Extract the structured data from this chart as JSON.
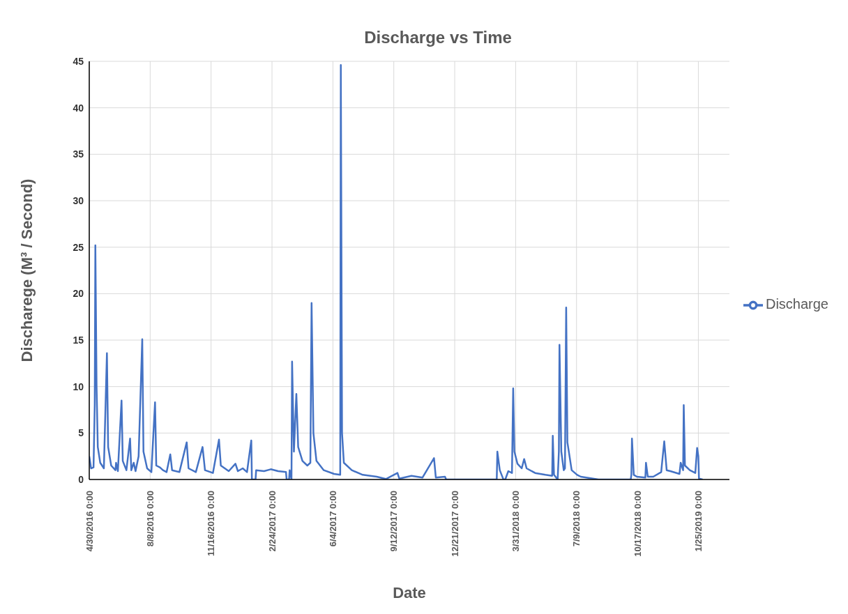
{
  "chart_data": {
    "type": "line",
    "title": "Discharge vs Time",
    "xlabel": "Date",
    "ylabel": "Discharege (M³ / Second)",
    "xlim": [
      "2016-04-30",
      "2019-03-17"
    ],
    "xticks": [
      {
        "value": "2016-04-30",
        "label": "4/30/2016 0:00"
      },
      {
        "value": "2016-08-08",
        "label": "8/8/2016 0:00"
      },
      {
        "value": "2016-11-16",
        "label": "11/16/2016 0:00"
      },
      {
        "value": "2017-02-24",
        "label": "2/24/2017 0:00"
      },
      {
        "value": "2017-06-04",
        "label": "6/4/2017 0:00"
      },
      {
        "value": "2017-09-12",
        "label": "9/12/2017 0:00"
      },
      {
        "value": "2017-12-21",
        "label": "12/21/2017 0:00"
      },
      {
        "value": "2018-03-31",
        "label": "3/31/2018 0:00"
      },
      {
        "value": "2018-07-09",
        "label": "7/9/2018 0:00"
      },
      {
        "value": "2018-10-17",
        "label": "10/17/2018 0:00"
      },
      {
        "value": "2019-01-25",
        "label": "1/25/2019 0:00"
      }
    ],
    "ylim": [
      0,
      45
    ],
    "yticks": [
      0,
      5,
      10,
      15,
      20,
      25,
      30,
      35,
      40,
      45
    ],
    "grid": true,
    "legend": "right",
    "line_style": "solid",
    "x": [
      "2016-04-30",
      "2016-05-03",
      "2016-05-07",
      "2016-05-09",
      "2016-05-10",
      "2016-05-12",
      "2016-05-14",
      "2016-05-18",
      "2016-05-24",
      "2016-05-29",
      "2016-05-31",
      "2016-06-05",
      "2016-06-12",
      "2016-06-13",
      "2016-06-16",
      "2016-06-22",
      "2016-06-24",
      "2016-06-30",
      "2016-07-06",
      "2016-07-08",
      "2016-07-12",
      "2016-07-15",
      "2016-07-20",
      "2016-07-26",
      "2016-07-28",
      "2016-08-03",
      "2016-08-10",
      "2016-08-16",
      "2016-08-18",
      "2016-08-24",
      "2016-08-29",
      "2016-09-04",
      "2016-09-10",
      "2016-09-13",
      "2016-09-25",
      "2016-10-07",
      "2016-10-10",
      "2016-10-22",
      "2016-11-02",
      "2016-11-06",
      "2016-11-19",
      "2016-11-29",
      "2016-12-02",
      "2016-12-15",
      "2016-12-26",
      "2016-12-30",
      "2017-01-07",
      "2017-01-14",
      "2017-01-21",
      "2017-01-22",
      "2017-01-28",
      "2017-01-29",
      "2017-02-11",
      "2017-02-22",
      "2017-03-06",
      "2017-03-19",
      "2017-03-20",
      "2017-03-24",
      "2017-03-25",
      "2017-03-28",
      "2017-03-29",
      "2017-04-01",
      "2017-04-05",
      "2017-04-08",
      "2017-04-15",
      "2017-04-23",
      "2017-04-28",
      "2017-04-30",
      "2017-05-03",
      "2017-05-08",
      "2017-05-20",
      "2017-06-06",
      "2017-06-16",
      "2017-06-17",
      "2017-06-19",
      "2017-06-22",
      "2017-07-05",
      "2017-07-23",
      "2017-08-15",
      "2017-08-30",
      "2017-09-18",
      "2017-09-21",
      "2017-10-11",
      "2017-10-29",
      "2017-11-17",
      "2017-11-20",
      "2017-12-05",
      "2017-12-07",
      "2018-02-28",
      "2018-03-01",
      "2018-03-05",
      "2018-03-08",
      "2018-03-11",
      "2018-03-14",
      "2018-03-19",
      "2018-03-25",
      "2018-03-27",
      "2018-03-29",
      "2018-04-03",
      "2018-04-10",
      "2018-04-14",
      "2018-04-18",
      "2018-05-02",
      "2018-05-19",
      "2018-05-30",
      "2018-05-31",
      "2018-06-02",
      "2018-06-08",
      "2018-06-10",
      "2018-06-11",
      "2018-06-14",
      "2018-06-18",
      "2018-06-20",
      "2018-06-22",
      "2018-06-24",
      "2018-07-01",
      "2018-07-10",
      "2018-07-16",
      "2018-08-05",
      "2018-08-14",
      "2018-10-06",
      "2018-10-07",
      "2018-10-08",
      "2018-10-11",
      "2018-10-16",
      "2018-10-30",
      "2018-10-31",
      "2018-11-03",
      "2018-11-12",
      "2018-11-25",
      "2018-11-26",
      "2018-11-30",
      "2018-12-04",
      "2018-12-10",
      "2018-12-25",
      "2018-12-27",
      "2018-12-31",
      "2019-01-01",
      "2019-01-03",
      "2019-01-11",
      "2019-01-20",
      "2019-01-23",
      "2019-01-25",
      "2019-01-26",
      "2019-02-01"
    ],
    "series": [
      {
        "name": "Discharge",
        "color": "#4472c4",
        "values": [
          2.5,
          1.2,
          1.3,
          8,
          25.2,
          10,
          3.5,
          1.8,
          1.2,
          13.6,
          3.5,
          1.5,
          1.0,
          1.8,
          0.9,
          8.5,
          2,
          1.0,
          4.4,
          1.0,
          1.8,
          0.9,
          2.5,
          15.1,
          3,
          1.2,
          0.8,
          8.3,
          1.5,
          1.3,
          1.0,
          0.8,
          2.7,
          1.0,
          0.8,
          4.0,
          1.2,
          0.8,
          3.5,
          1.0,
          0.7,
          4.3,
          1.5,
          0.9,
          1.7,
          0.9,
          1.2,
          0.8,
          4.2,
          0,
          0,
          1.0,
          0.9,
          1.1,
          0.9,
          0.8,
          0,
          0,
          1.0,
          0,
          12.7,
          3,
          9.2,
          3.5,
          2,
          1.5,
          1.8,
          19,
          5,
          2,
          1,
          0.6,
          0.5,
          44.6,
          5,
          1.8,
          1.0,
          0.5,
          0.3,
          0.05,
          0.7,
          0.1,
          0.4,
          0.2,
          2.3,
          0.2,
          0.3,
          0,
          0,
          3.0,
          1,
          0.5,
          0,
          0,
          0.9,
          0.7,
          9.8,
          3,
          1.7,
          1.2,
          2.2,
          1.2,
          0.7,
          0.5,
          0.4,
          4.7,
          0.5,
          0,
          3,
          14.5,
          3,
          1,
          1.2,
          18.5,
          4,
          1,
          0.5,
          0.3,
          0.1,
          0,
          0,
          0.5,
          4.4,
          0.5,
          0.3,
          0.2,
          1.8,
          0.3,
          0.3,
          0.8,
          1.5,
          4.1,
          1.0,
          0.9,
          0.6,
          1.8,
          1.0,
          8.0,
          1.5,
          1.0,
          0.7,
          3.4,
          2.5,
          0.1,
          0
        ]
      }
    ]
  }
}
